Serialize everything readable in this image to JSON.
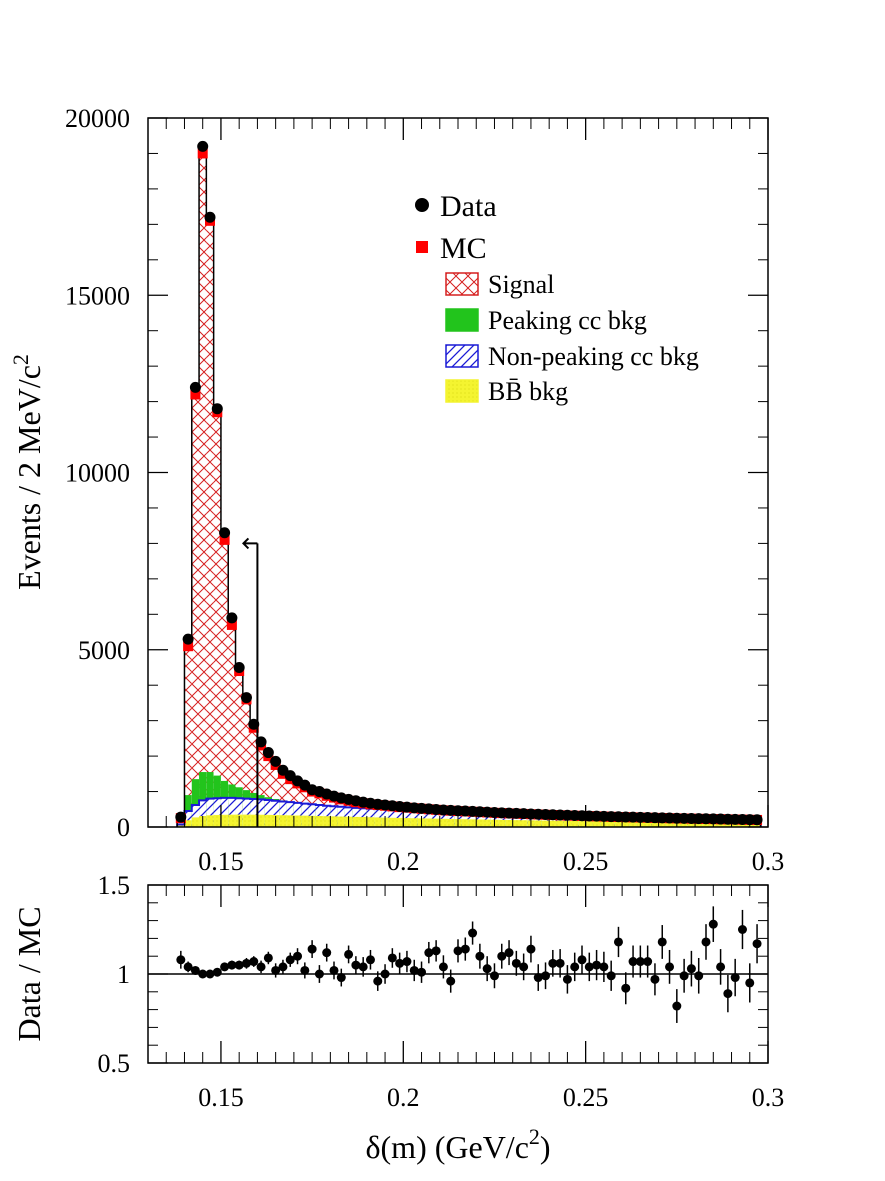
{
  "colors": {
    "signal": "#d62020",
    "signal_fill": "#ffffff",
    "peaking": "#22c41c",
    "nonpeaking": "#1a1ad6",
    "bb": "#f4f430",
    "data": "#000000",
    "mc": "#ff0000"
  },
  "chart_data": [
    {
      "type": "bar",
      "panel": "main",
      "ylabel": "Events / 2 MeV/c",
      "ylabel_sup": "2",
      "xlim": [
        0.13,
        0.3
      ],
      "ylim": [
        0,
        20000
      ],
      "x_ticks": [
        "0.15",
        "0.2",
        "0.25",
        "0.3"
      ],
      "y_ticks": [
        "0",
        "5000",
        "10000",
        "15000",
        "20000"
      ],
      "bin_width": 0.002,
      "x": [
        0.139,
        0.141,
        0.143,
        0.145,
        0.147,
        0.149,
        0.151,
        0.153,
        0.155,
        0.157,
        0.159,
        0.161,
        0.163,
        0.165,
        0.167,
        0.169,
        0.171,
        0.173,
        0.175,
        0.177,
        0.179,
        0.181,
        0.183,
        0.185,
        0.187,
        0.189,
        0.191,
        0.193,
        0.195,
        0.197,
        0.199,
        0.201,
        0.203,
        0.205,
        0.207,
        0.209,
        0.211,
        0.213,
        0.215,
        0.217,
        0.219,
        0.221,
        0.223,
        0.225,
        0.227,
        0.229,
        0.231,
        0.233,
        0.235,
        0.237,
        0.239,
        0.241,
        0.243,
        0.245,
        0.247,
        0.249,
        0.251,
        0.253,
        0.255,
        0.257,
        0.259,
        0.261,
        0.263,
        0.265,
        0.267,
        0.269,
        0.271,
        0.273,
        0.275,
        0.277,
        0.279,
        0.281,
        0.283,
        0.285,
        0.287,
        0.289,
        0.291,
        0.293,
        0.295,
        0.297
      ],
      "series": [
        {
          "name": "MC",
          "values": [
            250,
            5100,
            12200,
            19000,
            17100,
            11700,
            8100,
            5700,
            4400,
            3600,
            2800,
            2300,
            2000,
            1750,
            1500,
            1350,
            1230,
            1120,
            1000,
            950,
            880,
            830,
            780,
            740,
            700,
            670,
            640,
            620,
            600,
            580,
            560,
            545,
            530,
            515,
            500,
            485,
            470,
            460,
            450,
            440,
            430,
            420,
            410,
            400,
            392,
            384,
            376,
            368,
            360,
            352,
            345,
            338,
            331,
            324,
            318,
            312,
            306,
            300,
            294,
            288,
            282,
            277,
            272,
            267,
            262,
            257,
            252,
            247,
            243,
            239,
            235,
            231,
            227,
            223,
            219,
            215,
            211,
            207,
            203,
            199
          ]
        },
        {
          "name": "Data",
          "values": [
            280,
            5300,
            12400,
            19200,
            17200,
            11800,
            8300,
            5900,
            4500,
            3650,
            2900,
            2400,
            2100,
            1850,
            1600,
            1450,
            1300,
            1180,
            1050,
            1000,
            930,
            870,
            820,
            780,
            740,
            700,
            670,
            640,
            620,
            600,
            580,
            560,
            540,
            525,
            510,
            495,
            480,
            470,
            460,
            450,
            440,
            430,
            420,
            410,
            400,
            392,
            384,
            376,
            368,
            360,
            352,
            345,
            338,
            331,
            324,
            318,
            312,
            306,
            300,
            294,
            288,
            283,
            278,
            273,
            268,
            263,
            258,
            253,
            248,
            244,
            240,
            236,
            232,
            228,
            224,
            220,
            216,
            212,
            208,
            204
          ]
        },
        {
          "name": "Peaking cc bkg",
          "values": [
            80,
            900,
            1350,
            1550,
            1550,
            1450,
            1300,
            1200,
            1120,
            1040,
            960,
            900,
            840,
            790,
            750,
            700,
            650,
            620,
            600,
            580,
            560,
            545,
            530,
            515,
            500,
            490,
            480,
            475,
            470,
            465,
            460,
            455,
            450,
            445,
            440,
            432,
            424,
            416,
            408,
            400,
            392,
            385,
            378,
            371,
            364,
            358,
            352,
            346,
            340,
            334,
            329,
            324,
            319,
            314,
            309,
            304,
            299,
            294,
            289,
            284,
            280,
            276,
            272,
            268,
            264,
            260,
            256,
            252,
            248,
            244,
            240,
            236,
            232,
            228,
            224,
            220,
            216,
            212,
            208,
            204
          ]
        },
        {
          "name": "Non-peaking cc bkg",
          "values": [
            70,
            450,
            620,
            750,
            800,
            810,
            820,
            820,
            810,
            800,
            790,
            780,
            760,
            740,
            720,
            700,
            680,
            660,
            640,
            620,
            600,
            585,
            570,
            555,
            540,
            528,
            516,
            505,
            495,
            485,
            475,
            466,
            457,
            448,
            440,
            430,
            422,
            414,
            406,
            398,
            390,
            383,
            376,
            369,
            362,
            356,
            350,
            344,
            338,
            332,
            327,
            322,
            317,
            312,
            307,
            302,
            297,
            292,
            287,
            282,
            278,
            274,
            270,
            266,
            262,
            258,
            254,
            250,
            246,
            242,
            238,
            234,
            230,
            226,
            222,
            218,
            214,
            210,
            206,
            202
          ]
        },
        {
          "name": "BB bkg",
          "values": [
            40,
            190,
            270,
            310,
            330,
            340,
            345,
            348,
            350,
            350,
            348,
            346,
            342,
            338,
            334,
            330,
            325,
            320,
            315,
            310,
            305,
            300,
            295,
            290,
            285,
            280,
            275,
            270,
            265,
            260,
            256,
            252,
            248,
            244,
            240,
            236,
            232,
            228,
            224,
            220,
            216,
            212,
            208,
            204,
            200,
            197,
            194,
            191,
            188,
            185,
            182,
            179,
            176,
            173,
            170,
            167,
            164,
            161,
            158,
            155,
            152,
            150,
            148,
            146,
            144,
            142,
            140,
            138,
            136,
            134,
            132,
            130,
            128,
            126,
            124,
            122,
            120,
            118,
            116,
            114
          ]
        }
      ],
      "annotation": {
        "type": "arrow",
        "x": 0.16,
        "y_top": 8000,
        "y_bottom": 0,
        "points": "left"
      },
      "legend": {
        "placement": "top-right",
        "items": [
          {
            "label": "Data",
            "marker": "circle"
          },
          {
            "label": "MC",
            "marker": "square"
          },
          {
            "label": "Signal",
            "marker": "hatch-cross"
          },
          {
            "label": "Peaking cc bkg",
            "marker": "solid-green"
          },
          {
            "label": "Non-peaking cc bkg",
            "marker": "hatch-diag"
          },
          {
            "label": "BB̄ bkg",
            "marker": "solid-yellow"
          }
        ]
      }
    },
    {
      "type": "scatter",
      "panel": "ratio",
      "ylabel": "Data / MC",
      "xlabel": "δ(m) (GeV/c",
      "xlabel_sup": "2",
      "xlabel_tail": ")",
      "xlim": [
        0.13,
        0.3
      ],
      "ylim": [
        0.5,
        1.5
      ],
      "x_ticks": [
        "0.15",
        "0.2",
        "0.25",
        "0.3"
      ],
      "y_ticks": [
        "0.5",
        "1",
        "1.5"
      ],
      "reference_line": 1,
      "x": [
        0.139,
        0.141,
        0.143,
        0.145,
        0.147,
        0.149,
        0.151,
        0.153,
        0.155,
        0.157,
        0.159,
        0.161,
        0.163,
        0.165,
        0.167,
        0.169,
        0.171,
        0.173,
        0.175,
        0.177,
        0.179,
        0.181,
        0.183,
        0.185,
        0.187,
        0.189,
        0.191,
        0.193,
        0.195,
        0.197,
        0.199,
        0.201,
        0.203,
        0.205,
        0.207,
        0.209,
        0.211,
        0.213,
        0.215,
        0.217,
        0.219,
        0.221,
        0.223,
        0.225,
        0.227,
        0.229,
        0.231,
        0.233,
        0.235,
        0.237,
        0.239,
        0.241,
        0.243,
        0.245,
        0.247,
        0.249,
        0.251,
        0.253,
        0.255,
        0.257,
        0.259,
        0.261,
        0.263,
        0.265,
        0.267,
        0.269,
        0.271,
        0.273,
        0.275,
        0.277,
        0.279,
        0.281,
        0.283,
        0.285,
        0.287,
        0.289,
        0.291,
        0.293,
        0.295,
        0.297
      ],
      "values": [
        1.08,
        1.04,
        1.02,
        1.0,
        1.0,
        1.01,
        1.04,
        1.05,
        1.05,
        1.06,
        1.07,
        1.04,
        1.09,
        1.02,
        1.04,
        1.08,
        1.1,
        1.02,
        1.14,
        1.0,
        1.12,
        1.02,
        0.98,
        1.11,
        1.05,
        1.04,
        1.08,
        0.96,
        1.0,
        1.09,
        1.06,
        1.07,
        1.02,
        1.01,
        1.12,
        1.13,
        1.04,
        0.96,
        1.13,
        1.14,
        1.23,
        1.1,
        1.03,
        0.99,
        1.1,
        1.12,
        1.06,
        1.04,
        1.14,
        0.98,
        0.99,
        1.06,
        1.06,
        0.97,
        1.04,
        1.08,
        1.04,
        1.05,
        1.04,
        0.99,
        1.18,
        0.92,
        1.07,
        1.07,
        1.07,
        0.97,
        1.18,
        1.04,
        0.82,
        0.99,
        1.03,
        0.99,
        1.18,
        1.28,
        1.04,
        0.89,
        0.98,
        1.25,
        0.95,
        1.17
      ],
      "errors": [
        0.05,
        0.03,
        0.02,
        0.015,
        0.015,
        0.02,
        0.02,
        0.025,
        0.025,
        0.03,
        0.03,
        0.035,
        0.035,
        0.04,
        0.04,
        0.04,
        0.045,
        0.045,
        0.05,
        0.05,
        0.05,
        0.05,
        0.05,
        0.05,
        0.05,
        0.055,
        0.055,
        0.055,
        0.055,
        0.055,
        0.06,
        0.06,
        0.06,
        0.06,
        0.06,
        0.06,
        0.065,
        0.065,
        0.065,
        0.065,
        0.065,
        0.07,
        0.07,
        0.07,
        0.07,
        0.07,
        0.07,
        0.075,
        0.075,
        0.075,
        0.075,
        0.075,
        0.08,
        0.08,
        0.08,
        0.08,
        0.08,
        0.085,
        0.085,
        0.085,
        0.085,
        0.09,
        0.09,
        0.09,
        0.09,
        0.09,
        0.095,
        0.095,
        0.095,
        0.095,
        0.1,
        0.1,
        0.1,
        0.1,
        0.1,
        0.105,
        0.105,
        0.11,
        0.11,
        0.11
      ]
    }
  ]
}
